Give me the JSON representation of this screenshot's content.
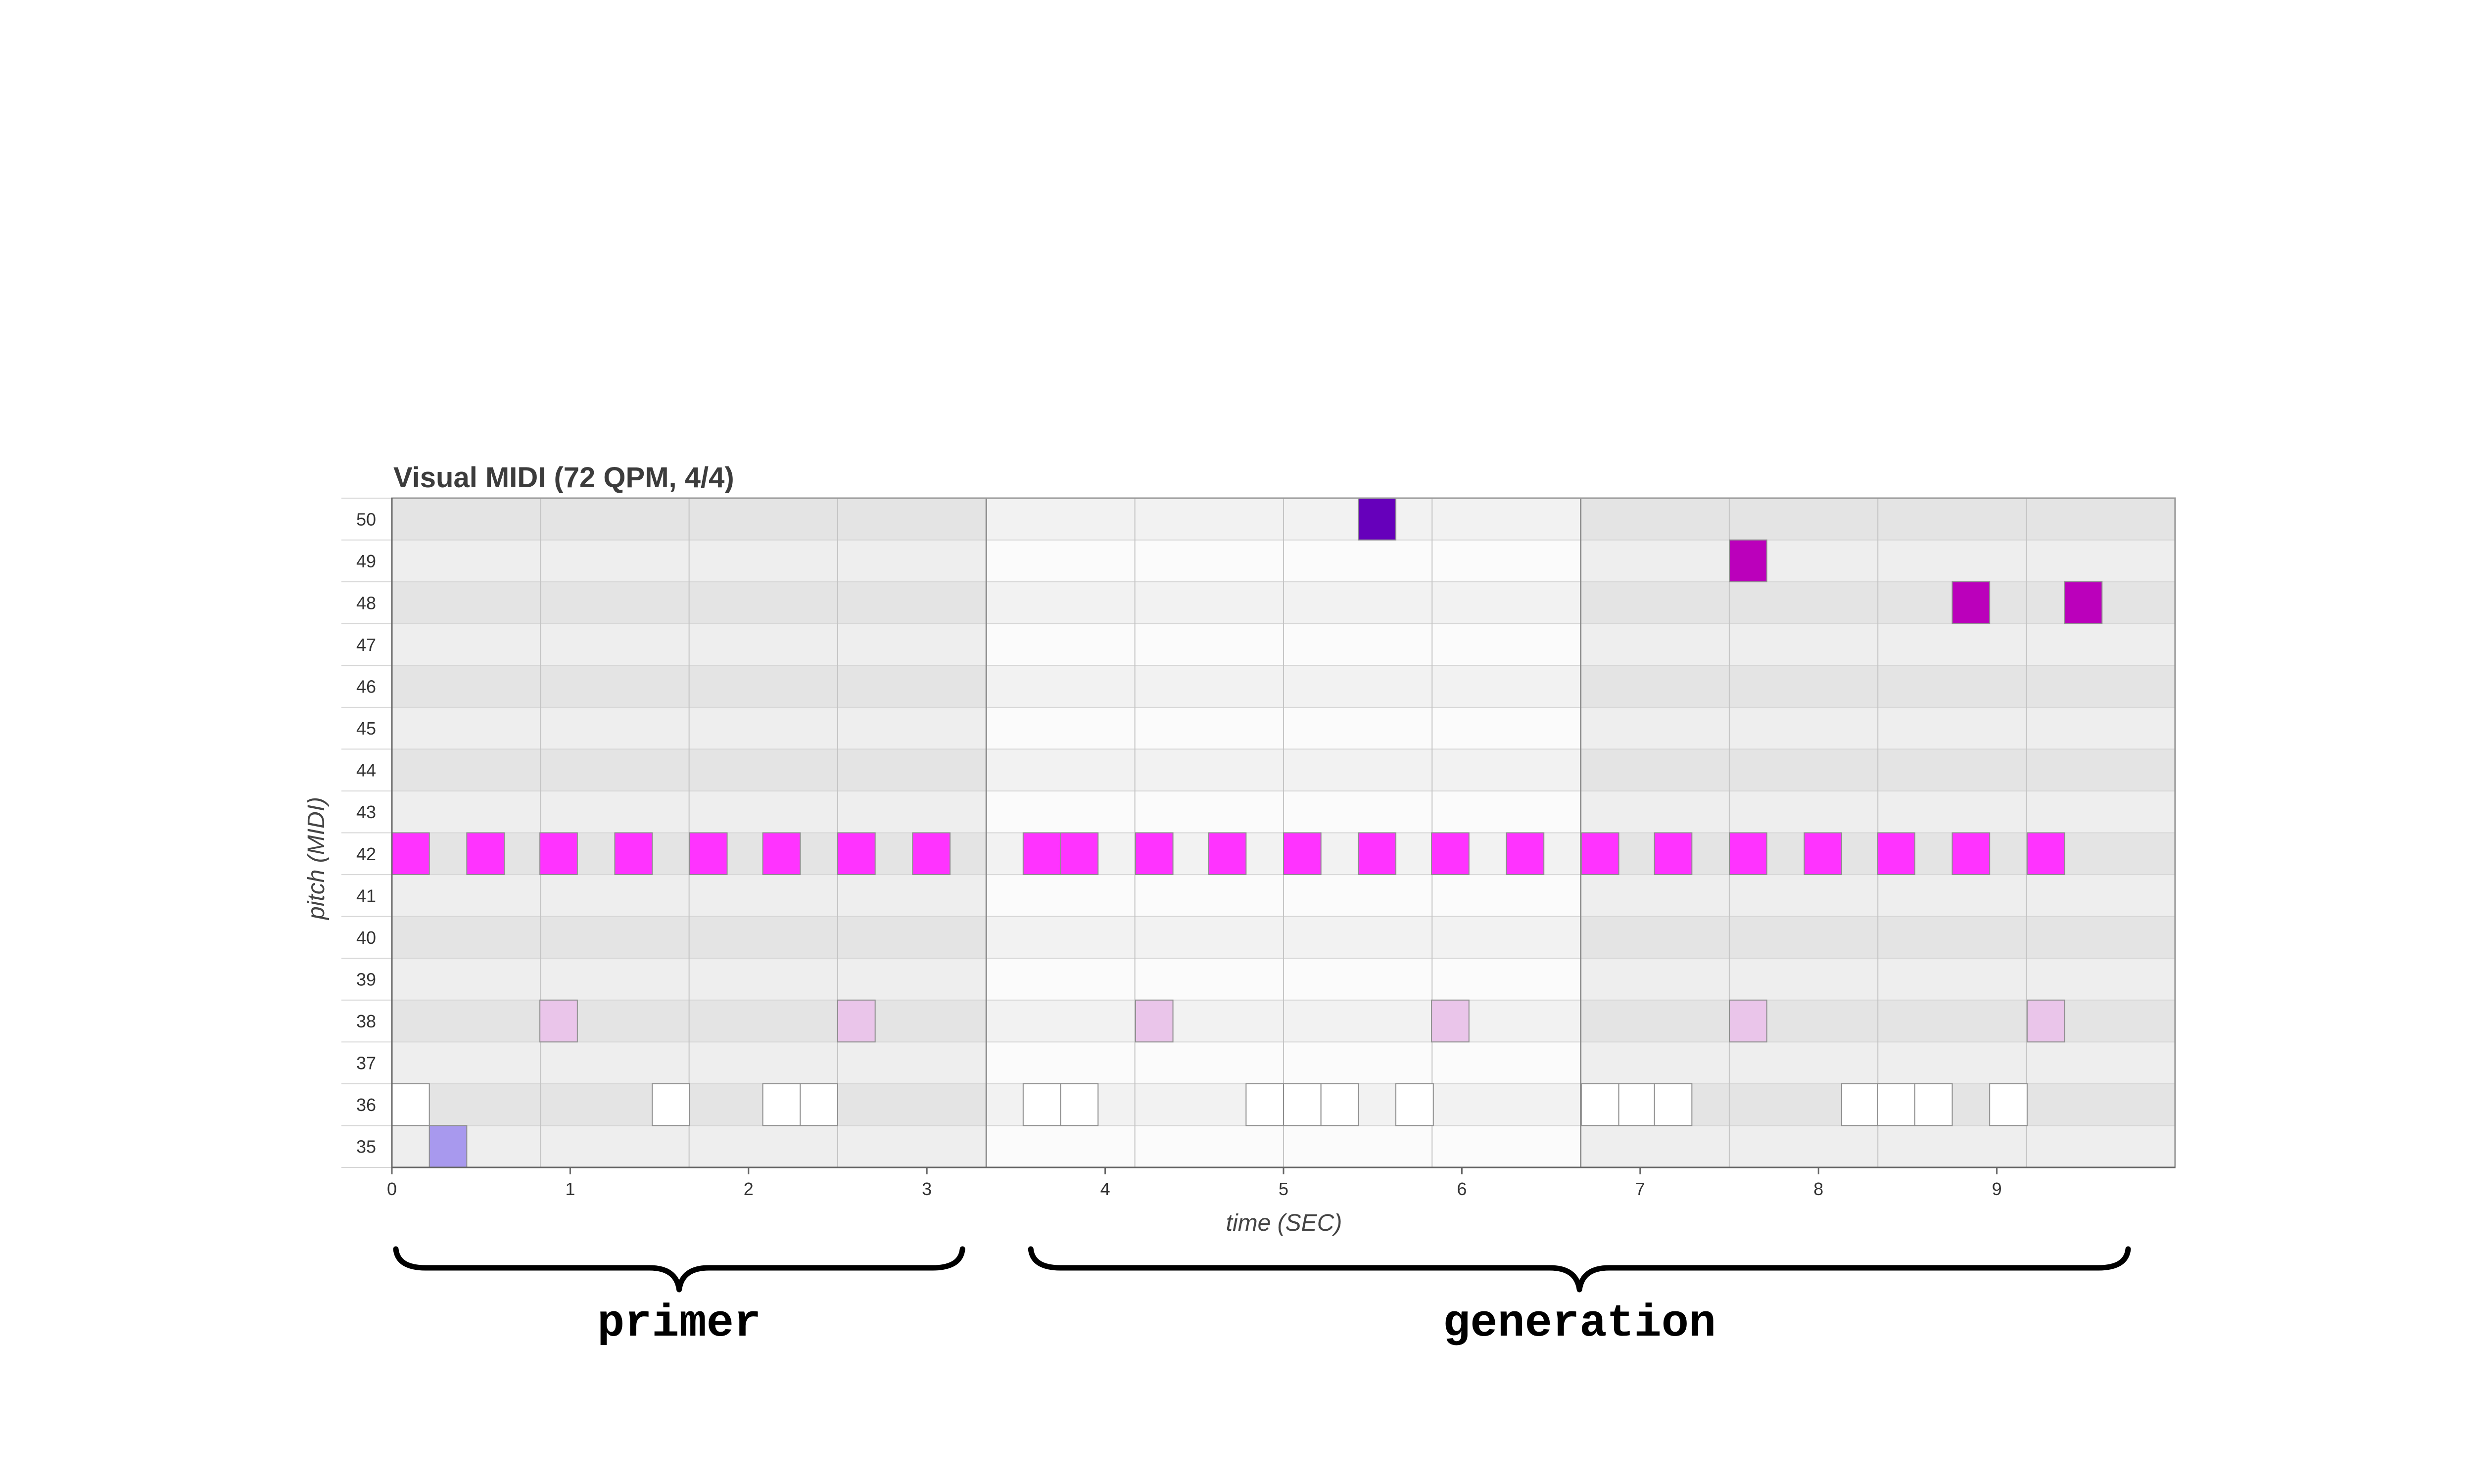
{
  "chart_data": {
    "type": "heatmap",
    "title": "Visual MIDI (72 QPM, 4/4)",
    "xlabel": "time (SEC)",
    "ylabel": "pitch (MIDI)",
    "xlim": [
      0,
      10
    ],
    "ylim": [
      35,
      50
    ],
    "x_ticks": [
      0,
      1,
      2,
      3,
      4,
      5,
      6,
      7,
      8,
      9
    ],
    "y_ticks": [
      35,
      36,
      37,
      38,
      39,
      40,
      41,
      42,
      43,
      44,
      45,
      46,
      47,
      48,
      49,
      50
    ],
    "beat_seconds": 0.8333,
    "bar_beats": 4,
    "note_duration": 0.21,
    "sections": [
      {
        "label": "primer",
        "start": 0,
        "end": 3.333
      },
      {
        "label": "generation",
        "start": 3.333,
        "end": 10
      }
    ],
    "notes": [
      {
        "t": 0.0,
        "p": 42,
        "color": "#ff33ff"
      },
      {
        "t": 0.42,
        "p": 42,
        "color": "#ff33ff"
      },
      {
        "t": 0.83,
        "p": 42,
        "color": "#ff33ff"
      },
      {
        "t": 1.25,
        "p": 42,
        "color": "#ff33ff"
      },
      {
        "t": 1.67,
        "p": 42,
        "color": "#ff33ff"
      },
      {
        "t": 2.08,
        "p": 42,
        "color": "#ff33ff"
      },
      {
        "t": 2.5,
        "p": 42,
        "color": "#ff33ff"
      },
      {
        "t": 2.92,
        "p": 42,
        "color": "#ff33ff"
      },
      {
        "t": 3.54,
        "p": 42,
        "color": "#ff33ff"
      },
      {
        "t": 3.75,
        "p": 42,
        "color": "#ff33ff"
      },
      {
        "t": 4.17,
        "p": 42,
        "color": "#ff33ff"
      },
      {
        "t": 4.58,
        "p": 42,
        "color": "#ff33ff"
      },
      {
        "t": 5.0,
        "p": 42,
        "color": "#ff33ff"
      },
      {
        "t": 5.42,
        "p": 42,
        "color": "#ff33ff"
      },
      {
        "t": 5.83,
        "p": 42,
        "color": "#ff33ff"
      },
      {
        "t": 6.25,
        "p": 42,
        "color": "#ff33ff"
      },
      {
        "t": 6.67,
        "p": 42,
        "color": "#ff33ff"
      },
      {
        "t": 7.08,
        "p": 42,
        "color": "#ff33ff"
      },
      {
        "t": 7.5,
        "p": 42,
        "color": "#ff33ff"
      },
      {
        "t": 7.92,
        "p": 42,
        "color": "#ff33ff"
      },
      {
        "t": 8.33,
        "p": 42,
        "color": "#ff33ff"
      },
      {
        "t": 8.75,
        "p": 42,
        "color": "#ff33ff"
      },
      {
        "t": 9.17,
        "p": 42,
        "color": "#ff33ff"
      },
      {
        "t": 0.83,
        "p": 38,
        "color": "#eac5ea"
      },
      {
        "t": 2.5,
        "p": 38,
        "color": "#eac5ea"
      },
      {
        "t": 4.17,
        "p": 38,
        "color": "#eac5ea"
      },
      {
        "t": 5.83,
        "p": 38,
        "color": "#eac5ea"
      },
      {
        "t": 7.5,
        "p": 38,
        "color": "#eac5ea"
      },
      {
        "t": 9.17,
        "p": 38,
        "color": "#eac5ea"
      },
      {
        "t": 0.0,
        "p": 36,
        "color": "#ffffff"
      },
      {
        "t": 1.46,
        "p": 36,
        "color": "#ffffff"
      },
      {
        "t": 2.08,
        "p": 36,
        "color": "#ffffff"
      },
      {
        "t": 2.29,
        "p": 36,
        "color": "#ffffff"
      },
      {
        "t": 3.54,
        "p": 36,
        "color": "#ffffff"
      },
      {
        "t": 3.75,
        "p": 36,
        "color": "#ffffff"
      },
      {
        "t": 4.79,
        "p": 36,
        "color": "#ffffff"
      },
      {
        "t": 5.0,
        "p": 36,
        "color": "#ffffff"
      },
      {
        "t": 5.21,
        "p": 36,
        "color": "#ffffff"
      },
      {
        "t": 5.63,
        "p": 36,
        "color": "#ffffff"
      },
      {
        "t": 6.67,
        "p": 36,
        "color": "#ffffff"
      },
      {
        "t": 6.88,
        "p": 36,
        "color": "#ffffff"
      },
      {
        "t": 7.08,
        "p": 36,
        "color": "#ffffff"
      },
      {
        "t": 8.13,
        "p": 36,
        "color": "#ffffff"
      },
      {
        "t": 8.33,
        "p": 36,
        "color": "#ffffff"
      },
      {
        "t": 8.54,
        "p": 36,
        "color": "#ffffff"
      },
      {
        "t": 8.96,
        "p": 36,
        "color": "#ffffff"
      },
      {
        "t": 0.21,
        "p": 35,
        "color": "#a899ee"
      },
      {
        "t": 5.42,
        "p": 50,
        "color": "#6600bb"
      },
      {
        "t": 7.5,
        "p": 49,
        "color": "#bb00bb"
      },
      {
        "t": 8.75,
        "p": 48,
        "color": "#bb00bb"
      },
      {
        "t": 9.38,
        "p": 48,
        "color": "#bb00bb"
      }
    ]
  }
}
